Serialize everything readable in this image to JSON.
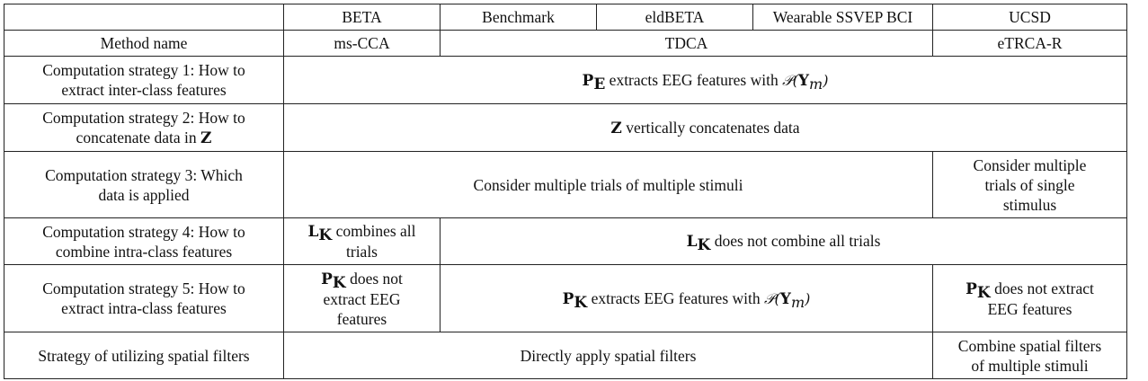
{
  "header": {
    "corner": "",
    "datasets": [
      "BETA",
      "Benchmark",
      "eldBETA",
      "Wearable SSVEP BCI",
      "UCSD"
    ]
  },
  "row_method": {
    "label": "Method name",
    "ms_cca": "ms-CCA",
    "tdca": "TDCA",
    "etrca_r": "eTRCA-R"
  },
  "row_s1": {
    "label_line1": "Computation strategy 1: How to",
    "label_line2": "extract inter-class features",
    "sym": "P",
    "sub": "E",
    "text": " extracts EEG features with ",
    "func": "𝒫(",
    "arg": "Y",
    "arg_sub": "m",
    "close": ")"
  },
  "row_s2": {
    "label_line1": "Computation strategy 2: How to",
    "label_line2": "concatenate data in ",
    "label_sym": "Z",
    "sym": "Z",
    "text": " vertically concatenates data"
  },
  "row_s3": {
    "label_line1": "Computation strategy 3: Which",
    "label_line2": "data is applied",
    "main": "Consider multiple trials of multiple stimuli",
    "ucsd_line1": "Consider multiple",
    "ucsd_line2": "trials of single",
    "ucsd_line3": "stimulus"
  },
  "row_s4": {
    "label_line1": "Computation strategy 4: How to",
    "label_line2": "combine intra-class features",
    "sym": "L",
    "sub": "K",
    "beta_text1": " combines all",
    "beta_text2": "trials",
    "rest_text": " does not combine all trials"
  },
  "row_s5": {
    "label_line1": "Computation strategy 5: How to",
    "label_line2": "extract intra-class features",
    "sym": "P",
    "sub": "K",
    "beta_text1": " does not",
    "beta_text2": "extract EEG",
    "beta_text3": "features",
    "mid_text": " extracts EEG features with ",
    "func": "𝒫(",
    "arg": "Y",
    "arg_sub": "m",
    "close": ")",
    "ucsd_text1": " does not extract",
    "ucsd_text2": "EEG features"
  },
  "row_spatial": {
    "label": "Strategy of utilizing spatial filters",
    "main": "Directly apply spatial filters",
    "ucsd_line1": "Combine spatial filters",
    "ucsd_line2": "of multiple stimuli"
  }
}
